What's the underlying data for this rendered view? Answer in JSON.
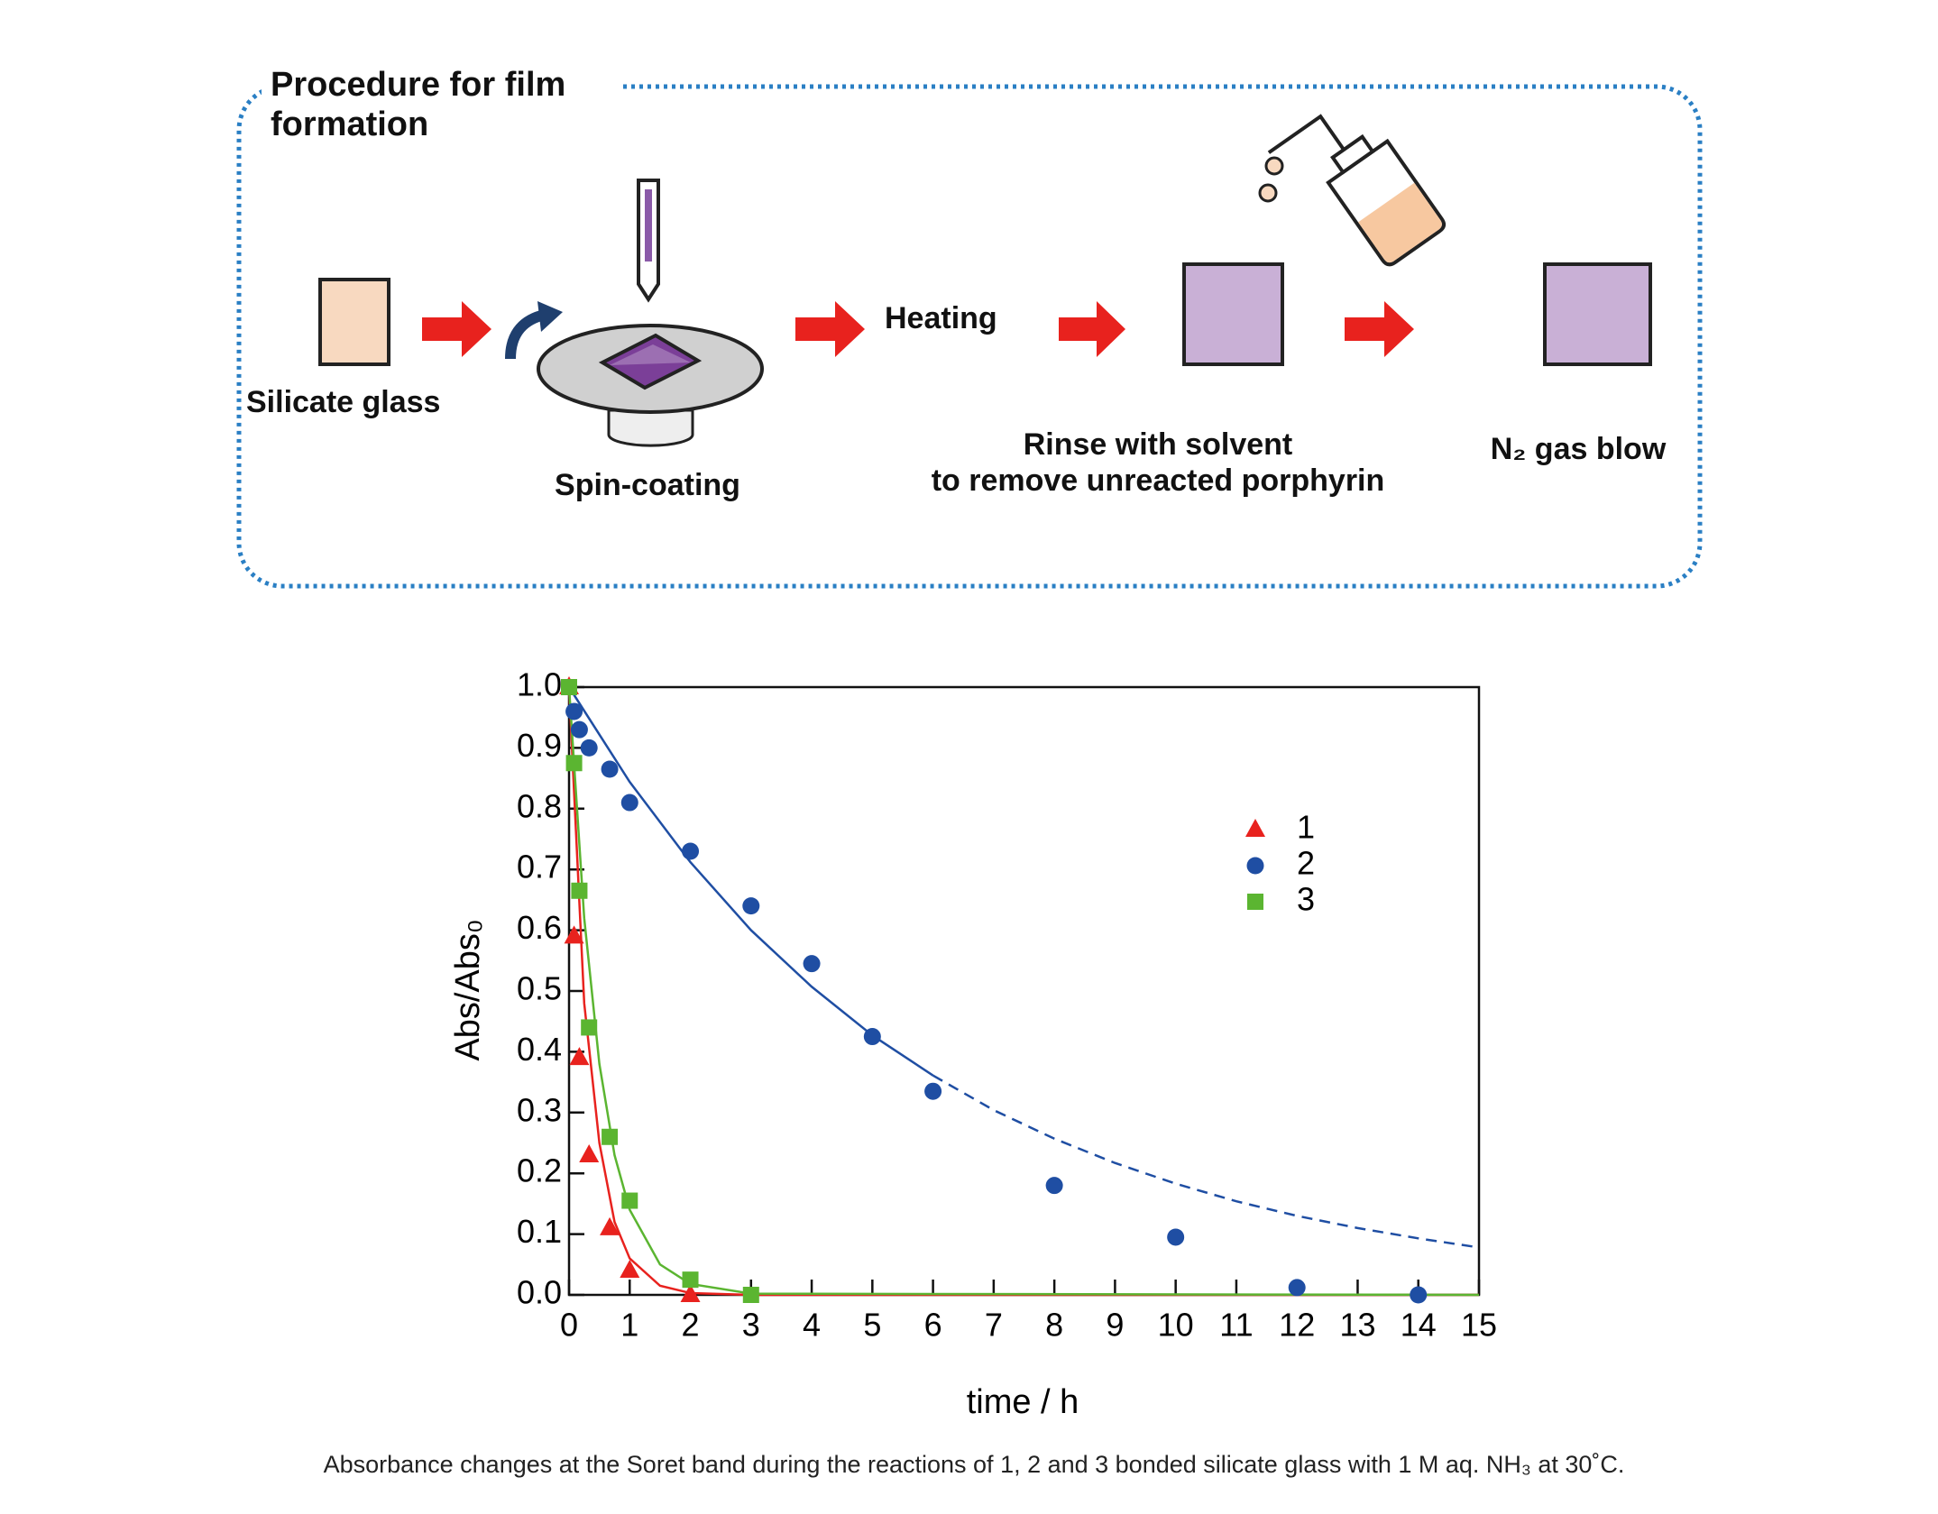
{
  "diagram": {
    "title": "Procedure for film formation",
    "steps": {
      "silicate": "Silicate glass",
      "spin": "Spin-coating",
      "heating": "Heating",
      "rinse": [
        "Rinse with solvent",
        "to remove unreacted porphyrin"
      ],
      "blow": "N₂ gas blow"
    }
  },
  "chart_data": {
    "type": "scatter",
    "xlabel": "time / h",
    "ylabel": "Abs/Abs₀",
    "xlim": [
      0,
      15
    ],
    "ylim": [
      0,
      1
    ],
    "xticks": [
      0,
      1,
      2,
      3,
      4,
      5,
      6,
      7,
      8,
      9,
      10,
      11,
      12,
      13,
      14,
      15
    ],
    "yticks": [
      {
        "value": 0,
        "label": "0.0"
      },
      0.1,
      0.2,
      0.3,
      0.4,
      0.5,
      0.6,
      0.7,
      0.8,
      0.9,
      {
        "value": 1,
        "label": "1.0"
      }
    ],
    "grid": false,
    "series": [
      {
        "name": "1",
        "color": "#e8221e",
        "marker": "triangle",
        "x": [
          0,
          0.083,
          0.17,
          0.33,
          0.67,
          1,
          2
        ],
        "values": [
          1.0,
          0.59,
          0.39,
          0.23,
          0.11,
          0.04,
          0.0
        ]
      },
      {
        "name": "2",
        "color": "#1f4ea3",
        "marker": "circle",
        "x": [
          0.083,
          0.17,
          0.33,
          0.67,
          1,
          2,
          3,
          4,
          5,
          6,
          8,
          10,
          12,
          14
        ],
        "values": [
          0.96,
          0.93,
          0.9,
          0.865,
          0.81,
          0.73,
          0.64,
          0.545,
          0.425,
          0.335,
          0.18,
          0.095,
          0.012,
          0.0
        ]
      },
      {
        "name": "3",
        "color": "#5bb531",
        "marker": "square",
        "x": [
          0,
          0.083,
          0.17,
          0.33,
          0.67,
          1,
          2,
          3
        ],
        "values": [
          1.0,
          0.875,
          0.665,
          0.44,
          0.26,
          0.155,
          0.025,
          0.0
        ]
      }
    ],
    "fits": [
      {
        "color": "#e8221e",
        "style": "solid",
        "x": [
          0,
          0.25,
          0.5,
          0.75,
          1,
          1.5,
          2,
          3,
          15
        ],
        "values": [
          1,
          0.48,
          0.25,
          0.12,
          0.06,
          0.015,
          0.003,
          0,
          0
        ]
      },
      {
        "color": "#5bb531",
        "style": "solid",
        "x": [
          0,
          0.25,
          0.5,
          0.75,
          1,
          1.5,
          2,
          3,
          15
        ],
        "values": [
          1,
          0.62,
          0.38,
          0.23,
          0.14,
          0.05,
          0.018,
          0.002,
          0
        ]
      },
      {
        "color": "#1f4ea3",
        "style": "solid",
        "x": [
          0,
          1,
          2,
          3,
          4,
          5,
          6
        ],
        "values": [
          1,
          0.844,
          0.712,
          0.6,
          0.507,
          0.427,
          0.361
        ]
      },
      {
        "color": "#1f4ea3",
        "style": "dashed",
        "x": [
          6,
          7,
          8,
          9,
          10,
          11,
          12,
          13,
          14,
          15
        ],
        "values": [
          0.361,
          0.304,
          0.257,
          0.217,
          0.183,
          0.154,
          0.13,
          0.11,
          0.093,
          0.078
        ]
      }
    ]
  },
  "caption": "Absorbance changes at the Soret band during the reactions of 1, 2 and 3 bonded silicate glass with 1 M aq. NH₃ at 30˚C."
}
